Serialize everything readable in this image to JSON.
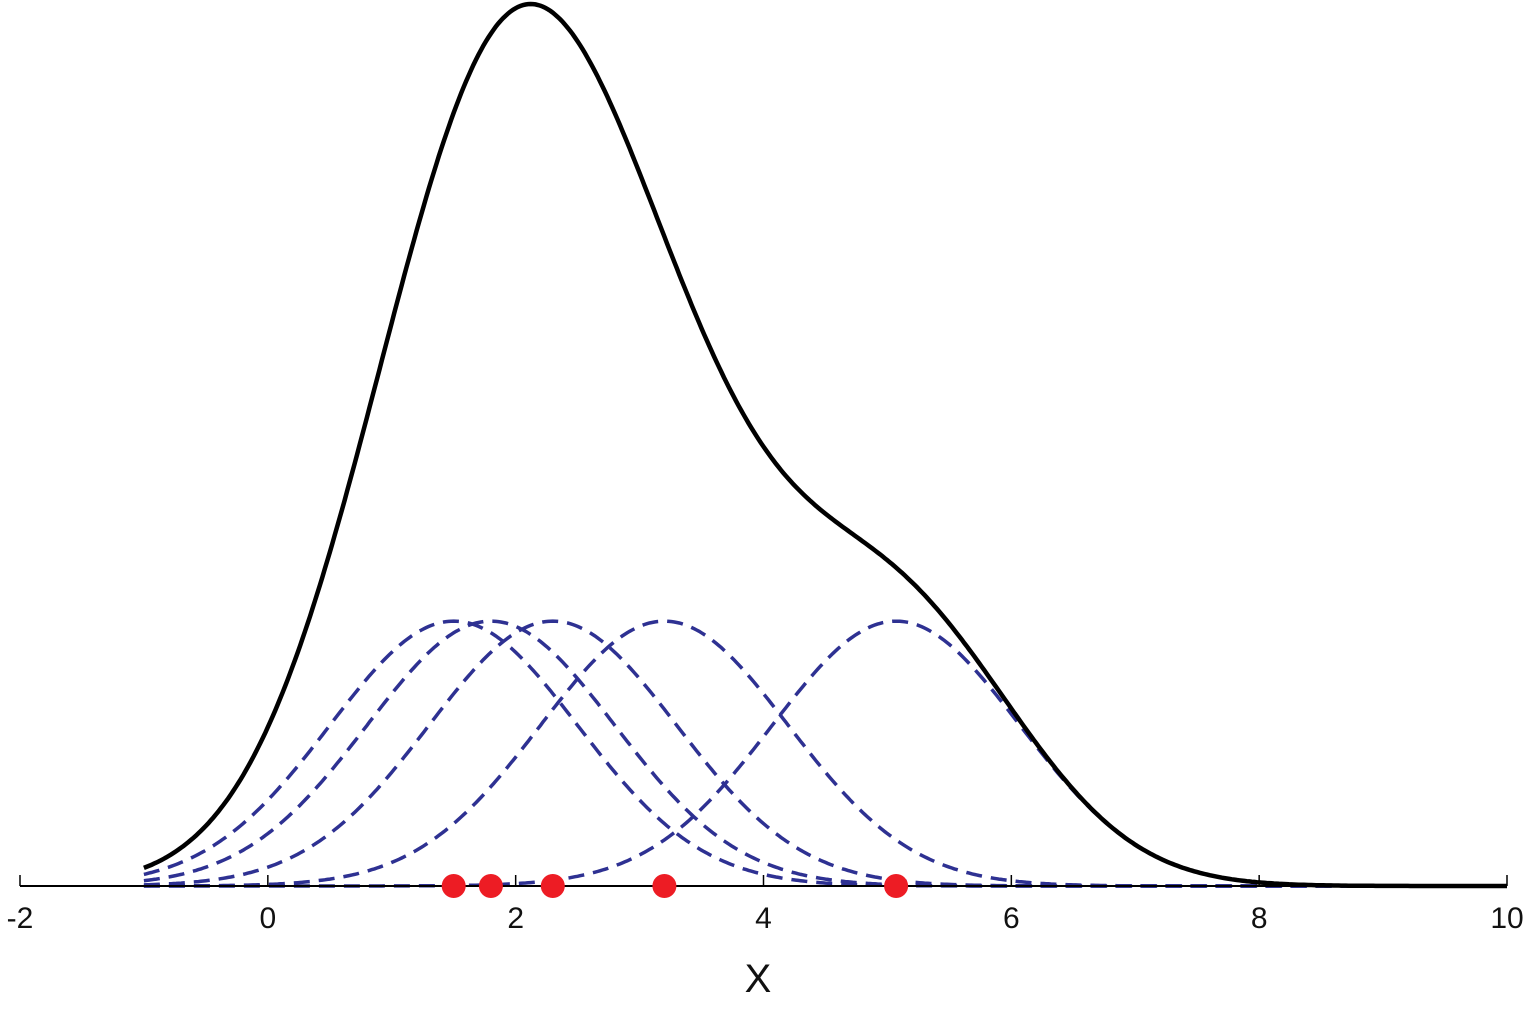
{
  "chart_data": {
    "type": "line",
    "title": "",
    "xlabel": "X",
    "ylabel": "",
    "xlim": [
      -2,
      10
    ],
    "xticks": [
      -2,
      0,
      2,
      4,
      6,
      8,
      10
    ],
    "xtick_labels": [
      "-2",
      "0",
      "2",
      "4",
      "6",
      "8",
      "10"
    ],
    "curve_domain": [
      -1,
      10
    ],
    "grid": false,
    "legend": "none",
    "kernel": "gaussian",
    "bandwidth": 1.0,
    "samples": [
      1.5,
      1.8,
      2.3,
      3.2,
      5.07
    ],
    "series": [
      {
        "role": "kde-sum",
        "style": "solid",
        "color": "#000000"
      },
      {
        "role": "kernel-components",
        "style": "dashed",
        "color": "#2e3192"
      },
      {
        "role": "sample-points",
        "style": "markers",
        "color": "#ed1c24"
      }
    ]
  }
}
